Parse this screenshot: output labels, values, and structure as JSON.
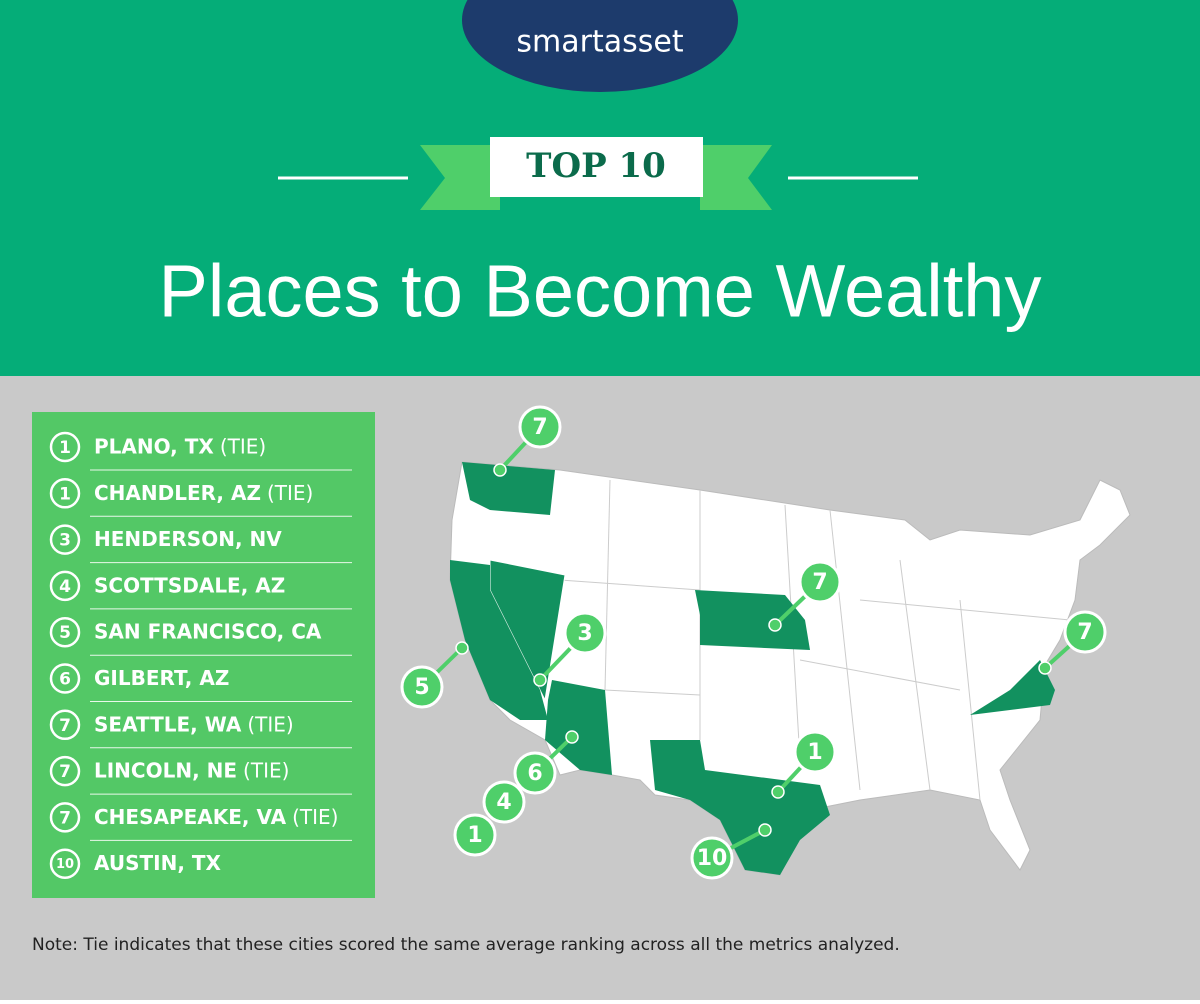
{
  "brand": "smartasset",
  "banner": "TOP 10",
  "title": "Places to Become Wealthy",
  "list": [
    {
      "rank": "1",
      "name": "PLANO, TX",
      "tie": "(TIE)"
    },
    {
      "rank": "1",
      "name": "CHANDLER, AZ",
      "tie": "(TIE)"
    },
    {
      "rank": "3",
      "name": "HENDERSON, NV"
    },
    {
      "rank": "4",
      "name": "SCOTTSDALE, AZ"
    },
    {
      "rank": "5",
      "name": "SAN FRANCISCO, CA"
    },
    {
      "rank": "6",
      "name": "GILBERT, AZ"
    },
    {
      "rank": "7",
      "name": "SEATTLE, WA",
      "tie": "(TIE)"
    },
    {
      "rank": "7",
      "name": "LINCOLN, NE",
      "tie": "(TIE)"
    },
    {
      "rank": "7",
      "name": "CHESAPEAKE, VA",
      "tie": "(TIE)"
    },
    {
      "rank": "10",
      "name": "AUSTIN, TX"
    }
  ],
  "map": {
    "markers": [
      "7",
      "7",
      "3",
      "7",
      "5",
      "1",
      "6",
      "4",
      "1",
      "10"
    ]
  },
  "note": "Note: Tie indicates that these cities scored the same average ranking across all the metrics analyzed."
}
